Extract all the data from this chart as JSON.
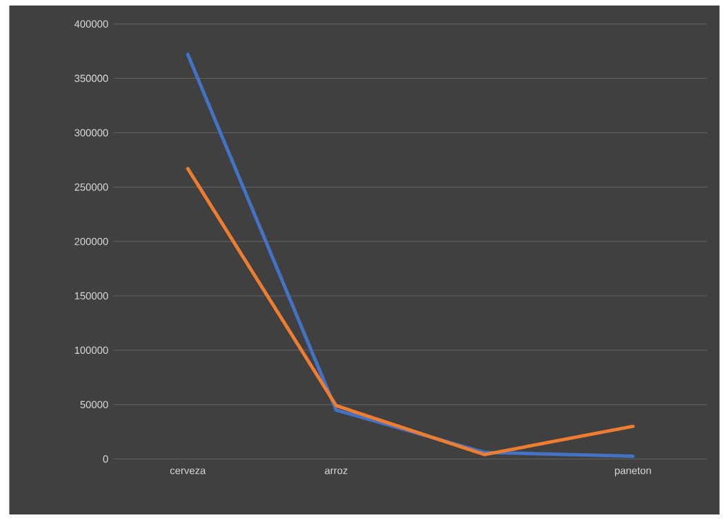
{
  "chart_data": {
    "type": "line",
    "categories": [
      "cerveza",
      "arroz",
      null,
      "paneton"
    ],
    "series": [
      {
        "color": "#4472c4",
        "values": [
          372000,
          45000,
          6000,
          2500
        ]
      },
      {
        "color": "#ed7d31",
        "values": [
          267000,
          49000,
          4000,
          30000
        ]
      }
    ],
    "ylim": [
      0,
      400000
    ],
    "yticks": [
      0,
      50000,
      100000,
      150000,
      200000,
      250000,
      300000,
      350000,
      400000
    ],
    "grid": "y"
  }
}
